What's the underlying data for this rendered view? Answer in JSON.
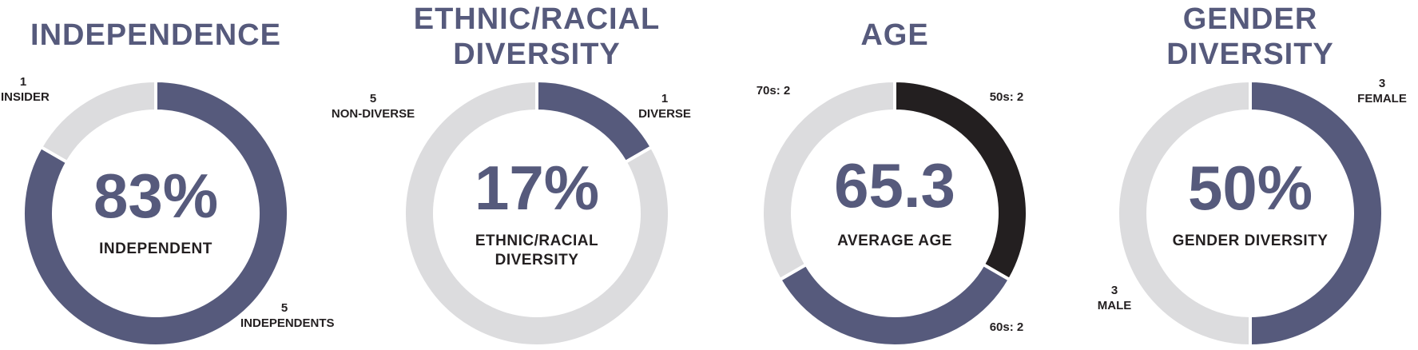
{
  "colors": {
    "primary": "#565a7c",
    "light": "#dcdcde",
    "dark": "#231f20",
    "text": "#231f20"
  },
  "chart_data": [
    {
      "type": "pie",
      "title_lines": [
        "INDEPENDENCE"
      ],
      "center_value": "83%",
      "center_label_lines": [
        "INDEPENDENT"
      ],
      "slices": [
        {
          "name": "INDEPENDENTS",
          "value": 5,
          "color": "#565a7c",
          "label_lines": [
            "5",
            "INDEPENDENTS"
          ]
        },
        {
          "name": "INSIDER",
          "value": 1,
          "color": "#dcdcde",
          "label_lines": [
            "1",
            "INSIDER"
          ]
        }
      ]
    },
    {
      "type": "pie",
      "title_lines": [
        "ETHNIC/RACIAL",
        "DIVERSITY"
      ],
      "center_value": "17%",
      "center_label_lines": [
        "ETHNIC/RACIAL",
        "DIVERSITY"
      ],
      "slices": [
        {
          "name": "DIVERSE",
          "value": 1,
          "color": "#565a7c",
          "label_lines": [
            "1",
            "DIVERSE"
          ]
        },
        {
          "name": "NON-DIVERSE",
          "value": 5,
          "color": "#dcdcde",
          "label_lines": [
            "5",
            "NON-DIVERSE"
          ]
        }
      ]
    },
    {
      "type": "pie",
      "title_lines": [
        "AGE"
      ],
      "center_value": "65.3",
      "center_label_lines": [
        "AVERAGE AGE"
      ],
      "slices": [
        {
          "name": "50s",
          "value": 2,
          "color": "#231f20",
          "label_lines": [
            "50s: 2"
          ]
        },
        {
          "name": "60s",
          "value": 2,
          "color": "#565a7c",
          "label_lines": [
            "60s: 2"
          ]
        },
        {
          "name": "70s",
          "value": 2,
          "color": "#dcdcde",
          "label_lines": [
            "70s: 2"
          ]
        }
      ]
    },
    {
      "type": "pie",
      "title_lines": [
        "GENDER",
        "DIVERSITY"
      ],
      "center_value": "50%",
      "center_label_lines": [
        "GENDER DIVERSITY"
      ],
      "slices": [
        {
          "name": "FEMALE",
          "value": 3,
          "color": "#565a7c",
          "label_lines": [
            "3",
            "FEMALE"
          ]
        },
        {
          "name": "MALE",
          "value": 3,
          "color": "#dcdcde",
          "label_lines": [
            "3",
            "MALE"
          ]
        }
      ]
    }
  ]
}
